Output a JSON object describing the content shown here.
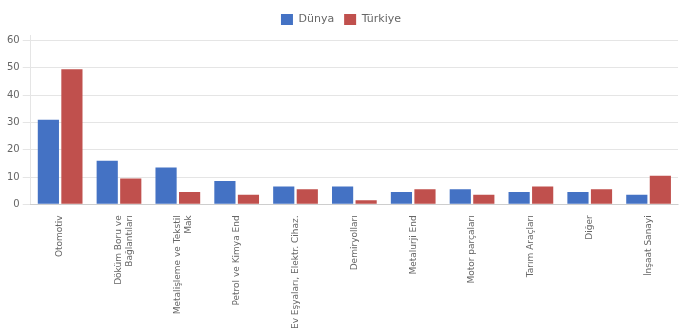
{
  "chart_data": {
    "type": "bar",
    "categories": [
      "Otomotiv",
      "Döküm Boru ve\nBağlantıları",
      "Metalişleme ve Tekstil\nMak",
      "Petrol ve Kimya End",
      "Ev Eşyaları, Elektr. Cihaz.",
      "Demiryolları",
      "Metalurji End",
      "Motor parçaları",
      "Tarım Araçları",
      "Diğer",
      "İnşaat Sanayi"
    ],
    "series": [
      {
        "name": "Dünya",
        "color": "#4472c4",
        "values": [
          31,
          16,
          13.5,
          8.5,
          6.5,
          6.5,
          4.5,
          5.5,
          4.5,
          4.5,
          3.5
        ]
      },
      {
        "name": "Türkiye",
        "color": "#c0504d",
        "values": [
          49.5,
          9.5,
          4.5,
          3.5,
          5.5,
          1.5,
          5.5,
          3.5,
          6.5,
          5.5,
          10.5
        ]
      }
    ],
    "ylim": [
      0,
      62
    ],
    "yticks": [
      0,
      10,
      20,
      30,
      40,
      50,
      60
    ],
    "grid": true,
    "legend": "top"
  }
}
